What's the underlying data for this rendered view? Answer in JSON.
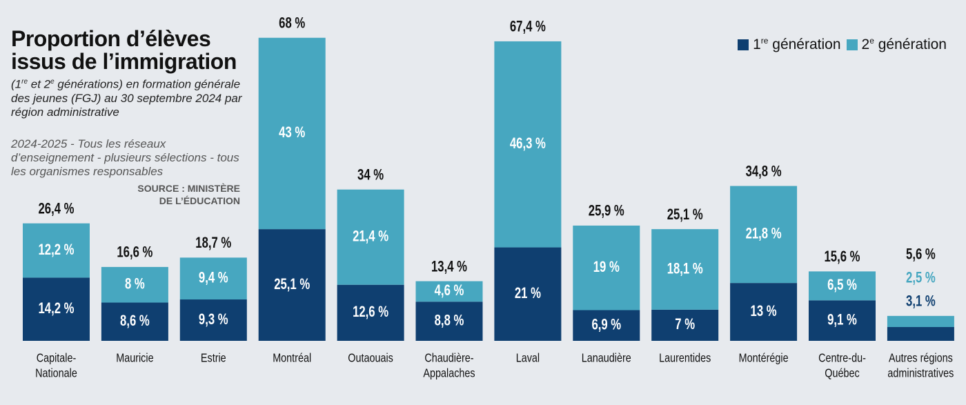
{
  "title_line1": "Proportion d’élèves",
  "title_line2": "issus de l’immigration",
  "subtitle": {
    "open_paren": "(1",
    "sup1": "re",
    "middle": " et 2",
    "sup2": "e",
    "rest": " générations) en formation générale des jeunes (FGJ) au 30 septembre 2024 par région administrative"
  },
  "note": "2024-2025 - Tous les réseaux d’enseignement - plusieurs sélections - tous les organismes responsables",
  "source_line1": "SOURCE : MINISTÈRE",
  "source_line2": "DE L’ÉDUCATION",
  "legend": {
    "gen1_pre": "1",
    "gen1_sup": "re",
    "gen1_post": " génération",
    "gen2_pre": "2",
    "gen2_sup": "e",
    "gen2_post": " génération"
  },
  "colors": {
    "gen1": "#0f3f70",
    "gen2": "#47a7c0",
    "gen2_text": "#47a7c0",
    "background": "#e7eaee"
  },
  "chart_data": {
    "type": "bar",
    "stacked": true,
    "title": "Proportion d’élèves issus de l’immigration",
    "ylim": [
      0,
      68
    ],
    "grid": false,
    "legend_position": "top-right",
    "categories": [
      [
        "Capitale-",
        "Nationale"
      ],
      [
        "Mauricie"
      ],
      [
        "Estrie"
      ],
      [
        "Montréal"
      ],
      [
        "Outaouais"
      ],
      [
        "Chaudière-",
        "Appalaches"
      ],
      [
        "Laval"
      ],
      [
        "Lanaudière"
      ],
      [
        "Laurentides"
      ],
      [
        "Montérégie"
      ],
      [
        "Centre-du-",
        "Québec"
      ],
      [
        "Autres régions",
        "administratives"
      ]
    ],
    "series": [
      {
        "name": "1re génération",
        "values": [
          14.2,
          8.6,
          9.3,
          25.1,
          12.6,
          8.8,
          21,
          6.9,
          7,
          13,
          9.1,
          3.1
        ],
        "labels": [
          "14,2 %",
          "8,6 %",
          "9,3 %",
          "25,1 %",
          "12,6 %",
          "8,8 %",
          "21 %",
          "6,9 %",
          "7 %",
          "13 %",
          "9,1 %",
          "3,1 %"
        ]
      },
      {
        "name": "2e génération",
        "values": [
          12.2,
          8,
          9.4,
          43,
          21.4,
          4.6,
          46.3,
          19,
          18.1,
          21.8,
          6.5,
          2.5
        ],
        "labels": [
          "12,2 %",
          "8 %",
          "9,4 %",
          "43 %",
          "21,4 %",
          "4,6 %",
          "46,3 %",
          "19 %",
          "18,1 %",
          "21,8 %",
          "6,5 %",
          "2,5 %"
        ]
      }
    ],
    "totals": [
      26.4,
      16.6,
      18.7,
      68,
      34,
      13.4,
      67.4,
      25.9,
      25.1,
      34.8,
      15.6,
      5.6
    ],
    "total_labels": [
      "26,4 %",
      "16,6 %",
      "18,7 %",
      "68 %",
      "34 %",
      "13,4 %",
      "67,4 %",
      "25,9 %",
      "25,1 %",
      "34,8 %",
      "15,6 %",
      "5,6 %"
    ]
  }
}
